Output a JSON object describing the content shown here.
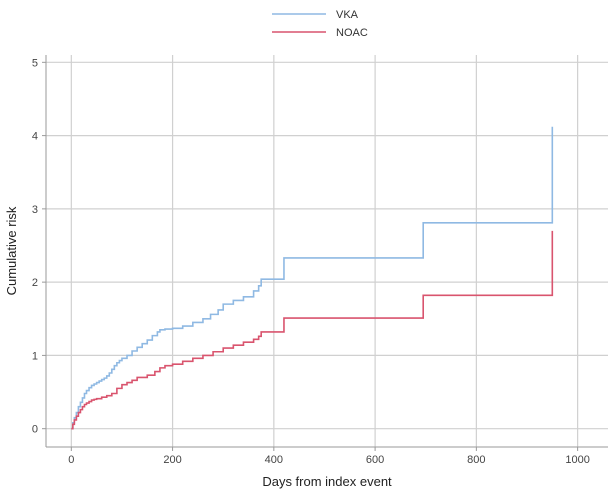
{
  "chart_data": {
    "type": "line",
    "step": true,
    "xlabel": "Days from index event",
    "ylabel": "Cumulative risk",
    "xlim": [
      -50,
      1060
    ],
    "ylim": [
      -0.25,
      5.1
    ],
    "xticks": [
      0,
      200,
      400,
      600,
      800,
      1000
    ],
    "yticks": [
      0,
      1,
      2,
      3,
      4,
      5
    ],
    "grid": true,
    "legend_position": "top-center",
    "series": [
      {
        "name": "VKA",
        "color": "#8fb9e3",
        "x": [
          0,
          3,
          6,
          10,
          14,
          18,
          22,
          26,
          30,
          35,
          40,
          45,
          50,
          55,
          60,
          65,
          70,
          75,
          80,
          85,
          90,
          95,
          100,
          110,
          120,
          130,
          140,
          150,
          160,
          170,
          175,
          185,
          200,
          220,
          240,
          260,
          275,
          290,
          300,
          320,
          340,
          360,
          370,
          375,
          400,
          420,
          450,
          500,
          600,
          695,
          750,
          800,
          850,
          900,
          950,
          950
        ],
        "y": [
          0,
          0.08,
          0.15,
          0.22,
          0.3,
          0.36,
          0.42,
          0.48,
          0.52,
          0.56,
          0.59,
          0.61,
          0.63,
          0.65,
          0.67,
          0.69,
          0.72,
          0.76,
          0.81,
          0.86,
          0.9,
          0.93,
          0.96,
          1.0,
          1.06,
          1.11,
          1.16,
          1.21,
          1.27,
          1.32,
          1.35,
          1.36,
          1.37,
          1.4,
          1.45,
          1.5,
          1.56,
          1.62,
          1.7,
          1.75,
          1.8,
          1.88,
          1.95,
          2.04,
          2.04,
          2.33,
          2.33,
          2.33,
          2.33,
          2.81,
          2.81,
          2.81,
          2.81,
          2.81,
          2.81,
          4.12
        ]
      },
      {
        "name": "NOAC",
        "color": "#d9546e",
        "x": [
          0,
          3,
          6,
          10,
          14,
          18,
          22,
          26,
          30,
          35,
          40,
          45,
          50,
          60,
          70,
          80,
          90,
          100,
          110,
          120,
          130,
          150,
          165,
          175,
          185,
          200,
          220,
          240,
          260,
          280,
          300,
          320,
          340,
          360,
          370,
          375,
          400,
          420,
          500,
          600,
          695,
          750,
          800,
          850,
          900,
          950,
          950
        ],
        "y": [
          0,
          0.06,
          0.12,
          0.17,
          0.22,
          0.26,
          0.3,
          0.33,
          0.35,
          0.37,
          0.39,
          0.4,
          0.41,
          0.43,
          0.45,
          0.48,
          0.55,
          0.6,
          0.63,
          0.66,
          0.7,
          0.73,
          0.78,
          0.83,
          0.86,
          0.88,
          0.92,
          0.96,
          1.0,
          1.05,
          1.1,
          1.14,
          1.18,
          1.22,
          1.26,
          1.32,
          1.32,
          1.51,
          1.51,
          1.51,
          1.82,
          1.82,
          1.82,
          1.82,
          1.82,
          1.82,
          2.7
        ]
      }
    ]
  },
  "colors": {
    "grid": "#d0d0d0",
    "axis": "#9a9a9a",
    "background": "#ffffff"
  }
}
